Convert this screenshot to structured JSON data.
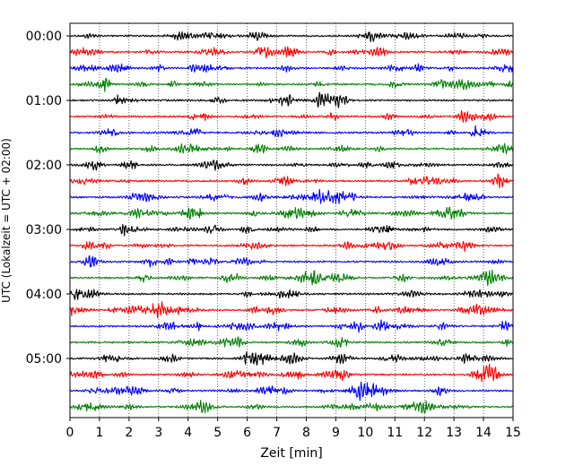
{
  "chart_data": {
    "type": "line",
    "title": "",
    "xlabel": "Zeit  [min]",
    "ylabel": "UTC (Lokalzeit = UTC + 02:00)",
    "xlim": [
      0,
      15
    ],
    "x_ticks": [
      "0",
      "1",
      "2",
      "3",
      "4",
      "5",
      "6",
      "7",
      "8",
      "9",
      "10",
      "11",
      "12",
      "13",
      "14",
      "15"
    ],
    "y_tick_labels": [
      "00:00",
      "01:00",
      "02:00",
      "03:00",
      "04:00",
      "05:00"
    ],
    "rows_per_hour": 4,
    "row_count": 24,
    "row_minutes": 15,
    "trace_colors": [
      "#000000",
      "#ff0000",
      "#0000ff",
      "#008000"
    ],
    "grid": "vertical-dotted"
  }
}
